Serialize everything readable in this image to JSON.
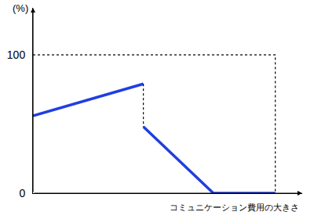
{
  "chart_data": {
    "type": "line",
    "ylabel": "(%)",
    "xlabel": "コミュニケーション費用の大きさ",
    "xlim": [
      0,
      100
    ],
    "ylim": [
      0,
      134
    ],
    "yticks": [
      0,
      100
    ],
    "tick_labels": "y",
    "grid": false,
    "series": [
      {
        "color": "#1f3fe0",
        "line_style": "solid",
        "x": [
          0,
          41
        ],
        "values": [
          56,
          79
        ]
      },
      {
        "color": "#1f3fe0",
        "line_style": "solid",
        "x": [
          41,
          67,
          90
        ],
        "values": [
          48,
          0,
          0
        ]
      },
      {
        "color": "#000000",
        "line_style": "dotted",
        "x": [
          41,
          41
        ],
        "values": [
          79,
          48
        ]
      },
      {
        "color": "#000000",
        "line_style": "dotted",
        "x": [
          0,
          90,
          90
        ],
        "values": [
          100,
          100,
          0
        ]
      }
    ]
  }
}
